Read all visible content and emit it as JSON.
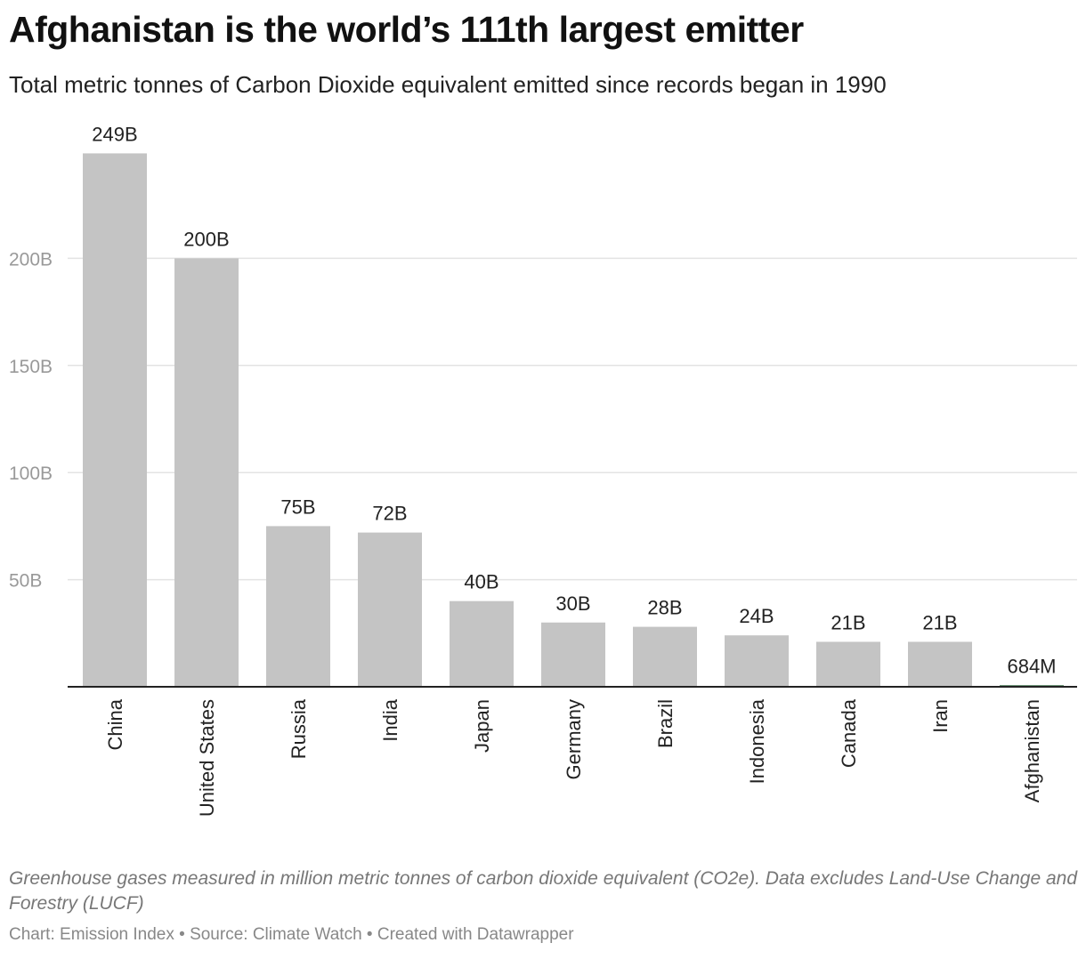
{
  "header": {
    "title": "Afghanistan is the world’s 111th largest emitter",
    "subtitle": "Total metric tonnes of Carbon Dioxide equivalent emitted since records began in 1990"
  },
  "footer": {
    "notes": "Greenhouse gases measured in million metric tonnes of carbon dioxide equivalent (CO2e). Data excludes Land-Use Change and Forestry (LUCF)",
    "credits": "Chart: Emission Index • Source: Climate Watch • Created with Datawrapper"
  },
  "colors": {
    "bar": "#c4c4c4",
    "highlight": "#1f5c2e",
    "grid": "#e3e3e3",
    "tick_label": "#999999",
    "baseline": "#222222"
  },
  "chart_data": {
    "type": "bar",
    "categories": [
      "China",
      "United States",
      "Russia",
      "India",
      "Japan",
      "Germany",
      "Brazil",
      "Indonesia",
      "Canada",
      "Iran",
      "Afghanistan"
    ],
    "values": [
      249,
      200,
      75,
      72,
      40,
      30,
      28,
      24,
      21,
      21,
      0.684
    ],
    "value_labels": [
      "249B",
      "200B",
      "75B",
      "72B",
      "40B",
      "30B",
      "28B",
      "24B",
      "21B",
      "21B",
      "684M"
    ],
    "unit": "billion tonnes CO2e",
    "y_ticks": [
      50,
      100,
      150,
      200
    ],
    "y_tick_labels": [
      "50B",
      "100B",
      "150B",
      "200B"
    ],
    "ylim": [
      0,
      249
    ],
    "grid": true,
    "highlight_category": "Afghanistan"
  }
}
